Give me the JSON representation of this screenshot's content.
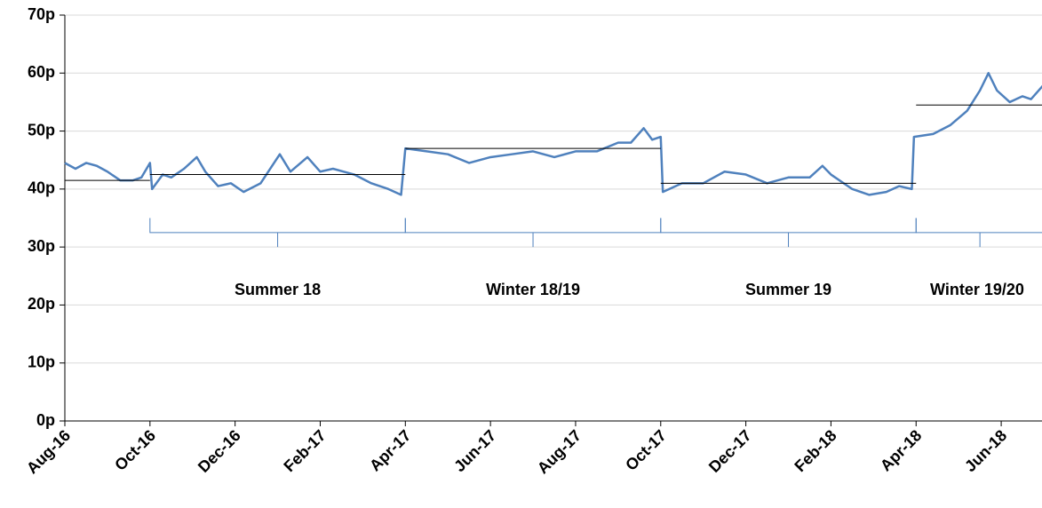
{
  "chart_data": {
    "type": "line",
    "x": [
      0,
      0.25,
      0.5,
      0.75,
      1.0,
      1.3,
      1.6,
      1.8,
      2.0,
      2.05,
      2.3,
      2.5,
      2.8,
      3.1,
      3.3,
      3.6,
      3.9,
      4.2,
      4.6,
      5.05,
      5.3,
      5.7,
      6.0,
      6.3,
      6.8,
      7.2,
      7.6,
      7.9,
      8.0,
      8.5,
      9.0,
      9.5,
      10.0,
      10.5,
      11.0,
      11.5,
      12.0,
      12.5,
      13.0,
      13.3,
      13.6,
      13.8,
      14.0,
      14.05,
      14.5,
      15.0,
      15.5,
      16.0,
      16.5,
      17.0,
      17.5,
      17.8,
      18.0,
      18.5,
      18.9,
      19.3,
      19.6,
      19.9,
      19.95,
      20.4,
      20.8,
      21.2,
      21.5,
      21.7,
      21.9,
      22.2,
      22.5,
      22.7,
      23.0
    ],
    "series": [
      {
        "color": "#4f81bd",
        "values": [
          44.5,
          43.5,
          44.5,
          44,
          43,
          41.5,
          41.5,
          42,
          44.5,
          40,
          42.5,
          42,
          43.5,
          45.5,
          43,
          40.5,
          41,
          39.5,
          41,
          46,
          43,
          45.5,
          43,
          43.5,
          42.5,
          41,
          40,
          39,
          47,
          46.5,
          46,
          44.5,
          45.5,
          46,
          46.5,
          45.5,
          46.5,
          46.5,
          48,
          48,
          50.5,
          48.5,
          49,
          39.5,
          41,
          41,
          43,
          42.5,
          41,
          42,
          42,
          44,
          42.5,
          40,
          39,
          39.5,
          40.5,
          40,
          49,
          49.5,
          51,
          53.5,
          57,
          60,
          57,
          55,
          56,
          55.5,
          58
        ]
      }
    ],
    "averages": [
      {
        "start": 0,
        "end": 2,
        "value": 41.5
      },
      {
        "start": 2,
        "end": 8,
        "value": 42.5
      },
      {
        "start": 8,
        "end": 14,
        "value": 47
      },
      {
        "start": 14,
        "end": 20,
        "value": 41
      },
      {
        "start": 20,
        "end": 23,
        "value": 54.5
      }
    ],
    "seasons": [
      {
        "label": "Summer 18",
        "start": 2,
        "end": 8
      },
      {
        "label": "Winter 18/19",
        "start": 8,
        "end": 14
      },
      {
        "label": "Summer 19",
        "start": 14,
        "end": 20
      },
      {
        "label": "Winter 19/20",
        "start": 20,
        "end": 23
      }
    ],
    "xlim": [
      0,
      23
    ],
    "xticks": [
      {
        "value": 0,
        "label": "Aug-16"
      },
      {
        "value": 2,
        "label": "Oct-16"
      },
      {
        "value": 4,
        "label": "Dec-16"
      },
      {
        "value": 6,
        "label": "Feb-17"
      },
      {
        "value": 8,
        "label": "Apr-17"
      },
      {
        "value": 10,
        "label": "Jun-17"
      },
      {
        "value": 12,
        "label": "Aug-17"
      },
      {
        "value": 14,
        "label": "Oct-17"
      },
      {
        "value": 16,
        "label": "Dec-17"
      },
      {
        "value": 18,
        "label": "Feb-18"
      },
      {
        "value": 20,
        "label": "Apr-18"
      },
      {
        "value": 22,
        "label": "Jun-18"
      }
    ],
    "ylim": [
      0,
      70
    ],
    "yticks": [
      {
        "value": 0,
        "label": "0p"
      },
      {
        "value": 10,
        "label": "10p"
      },
      {
        "value": 20,
        "label": "20p"
      },
      {
        "value": 30,
        "label": "30p"
      },
      {
        "value": 40,
        "label": "40p"
      },
      {
        "value": 50,
        "label": "50p"
      },
      {
        "value": 60,
        "label": "60p"
      },
      {
        "value": 70,
        "label": "70p"
      }
    ],
    "grid": true
  }
}
